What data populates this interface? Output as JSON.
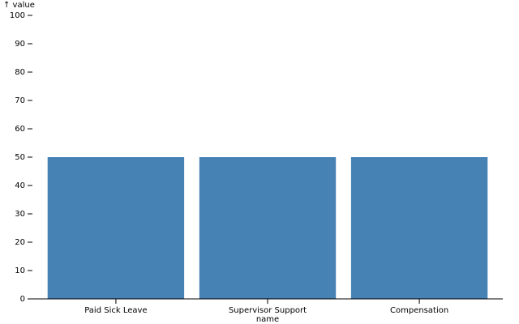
{
  "chart_data": {
    "type": "bar",
    "y_label": "↑ value",
    "x_label": "name",
    "categories": [
      "Paid Sick Leave",
      "Supervisor Support",
      "Compensation"
    ],
    "values": [
      50,
      50,
      50
    ],
    "color": "#4682b4",
    "ylim": [
      0,
      100
    ],
    "yticks": [
      0,
      10,
      20,
      30,
      40,
      50,
      60,
      70,
      80,
      90,
      100
    ]
  }
}
